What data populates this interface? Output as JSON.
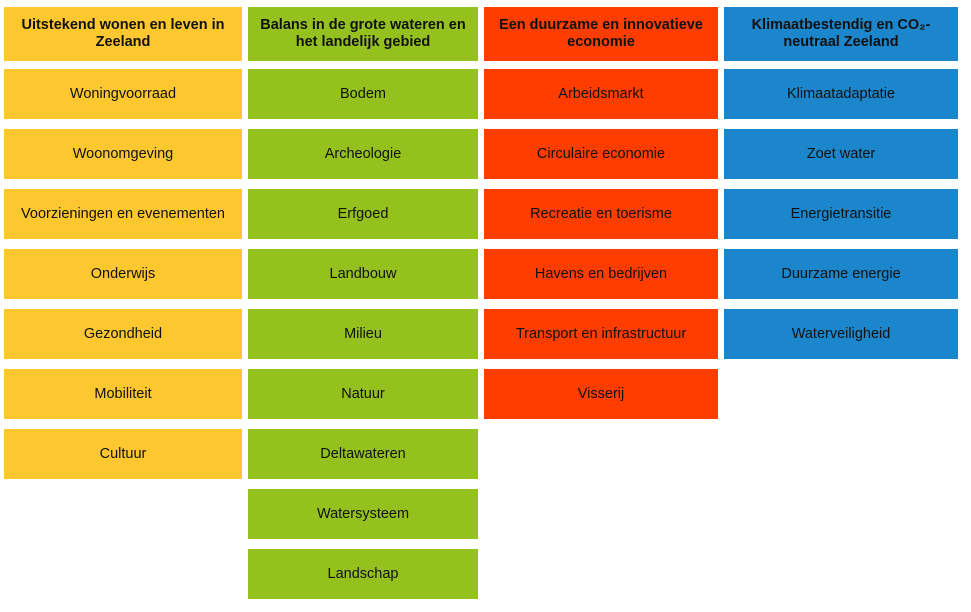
{
  "columns": [
    {
      "title": "Uitstekend wonen en leven in Zeeland",
      "color": "#FDC82F",
      "items": [
        "Woningvoorraad",
        "Woonomgeving",
        "Voorzieningen en evenementen",
        "Onderwijs",
        "Gezondheid",
        "Mobiliteit",
        "Cultuur"
      ]
    },
    {
      "title": "Balans in de grote wateren en het landelijk gebied",
      "color": "#95C11F",
      "items": [
        "Bodem",
        "Archeologie",
        "Erfgoed",
        "Landbouw",
        "Milieu",
        "Natuur",
        "Deltawateren",
        "Watersysteem",
        "Landschap"
      ]
    },
    {
      "title": "Een duurzame en innovatieve economie",
      "color": "#FF3D00",
      "items": [
        "Arbeidsmarkt",
        "Circulaire economie",
        "Recreatie en toerisme",
        "Havens en bedrijven",
        "Transport en infrastructuur",
        "Visserij"
      ]
    },
    {
      "title": "Klimaatbestendig en CO₂-neutraal Zeeland",
      "color": "#1B86CB",
      "items": [
        "Klimaatadaptatie",
        "Zoet water",
        "Energietransitie",
        "Duurzame energie",
        "Waterveiligheid"
      ]
    }
  ]
}
